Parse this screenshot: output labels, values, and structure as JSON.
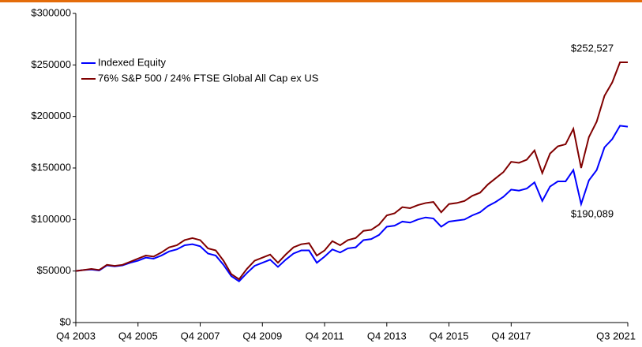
{
  "chart_data": {
    "type": "line",
    "categories": [
      "Q4 2003",
      null,
      null,
      null,
      null,
      null,
      null,
      null,
      "Q4 2005",
      null,
      null,
      null,
      null,
      null,
      null,
      null,
      "Q4 2007",
      null,
      null,
      null,
      null,
      null,
      null,
      null,
      "Q4 2009",
      null,
      null,
      null,
      null,
      null,
      null,
      null,
      "Q4 2011",
      null,
      null,
      null,
      null,
      null,
      null,
      null,
      "Q4 2013",
      null,
      null,
      null,
      null,
      null,
      null,
      null,
      "Q4 2015",
      null,
      null,
      null,
      null,
      null,
      null,
      null,
      "Q4 2017",
      null,
      null,
      null,
      null,
      null,
      null,
      null,
      null,
      null,
      null,
      null,
      null,
      null,
      null,
      "Q3 2021"
    ],
    "series": [
      {
        "name": "Indexed Equity",
        "color": "#0000ff",
        "values": [
          50000,
          51000,
          51500,
          50500,
          55500,
          54500,
          55500,
          58000,
          60000,
          63000,
          62000,
          65000,
          69000,
          71000,
          75000,
          76000,
          74000,
          67000,
          65000,
          56000,
          45000,
          40000,
          48000,
          55000,
          58000,
          61000,
          54000,
          61000,
          67000,
          70000,
          70000,
          58000,
          64000,
          71000,
          68000,
          72000,
          73000,
          80000,
          81000,
          85000,
          93000,
          94000,
          98000,
          97000,
          100000,
          102000,
          101000,
          93000,
          98000,
          99000,
          100000,
          104000,
          107000,
          113000,
          117000,
          122000,
          129000,
          128000,
          130000,
          136000,
          118000,
          132000,
          137000,
          137000,
          148000,
          115000,
          138000,
          148000,
          170000,
          178000,
          191000,
          190089
        ]
      },
      {
        "name": "76% S&P 500 / 24% FTSE Global All Cap ex US",
        "color": "#800000",
        "values": [
          50000,
          51000,
          52000,
          51000,
          56000,
          55000,
          56000,
          59000,
          62000,
          65000,
          64000,
          68000,
          73000,
          75000,
          80000,
          82000,
          80000,
          72000,
          70000,
          60000,
          47000,
          42000,
          52000,
          60000,
          63000,
          66000,
          58000,
          66000,
          73000,
          76000,
          77000,
          65000,
          70000,
          79000,
          75000,
          80000,
          82000,
          89000,
          90000,
          95000,
          104000,
          106000,
          112000,
          111000,
          114000,
          116000,
          117000,
          107000,
          115000,
          116000,
          118000,
          123000,
          126000,
          134000,
          140000,
          146000,
          156000,
          155000,
          158000,
          167000,
          145000,
          164000,
          171000,
          173000,
          188000,
          150000,
          180000,
          195000,
          220000,
          233000,
          252527,
          252527
        ]
      }
    ],
    "annotations": [
      {
        "text": "$252,527"
      },
      {
        "text": "$190,089"
      }
    ],
    "ylim": [
      0,
      300000
    ],
    "yticks": [
      {
        "value": 0,
        "label": "$0"
      },
      {
        "value": 50000,
        "label": "$50000"
      },
      {
        "value": 100000,
        "label": "$100000"
      },
      {
        "value": 150000,
        "label": "$150000"
      },
      {
        "value": 200000,
        "label": "$200000"
      },
      {
        "value": 250000,
        "label": "$250000"
      },
      {
        "value": 300000,
        "label": "$300000"
      }
    ],
    "grid": false,
    "legend": "upper left"
  }
}
